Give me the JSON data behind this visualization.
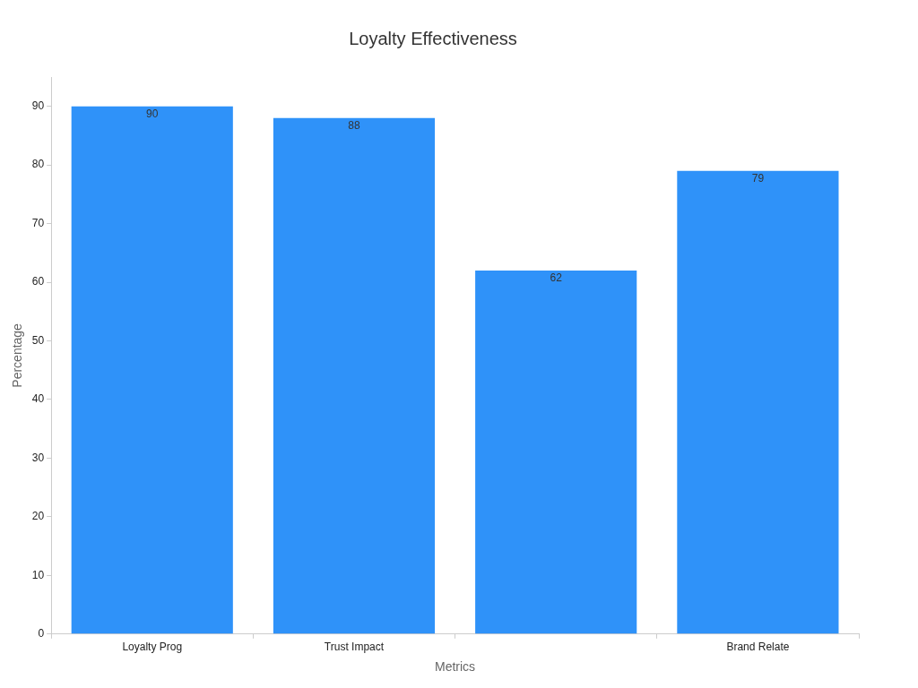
{
  "chart_data": {
    "type": "bar",
    "title": "Loyalty Effectiveness",
    "xlabel": "Metrics",
    "ylabel": "Percentage",
    "categories": [
      "Loyalty Prog",
      "Trust Impact",
      null,
      "Brand Relate"
    ],
    "values": [
      90,
      88,
      62,
      79
    ],
    "color": "#2f92f9",
    "ylim": [
      0,
      95
    ],
    "yticks": [
      0,
      10,
      20,
      30,
      40,
      50,
      60,
      70,
      80,
      90
    ],
    "grid": false,
    "legend": false,
    "data_labels": true
  }
}
